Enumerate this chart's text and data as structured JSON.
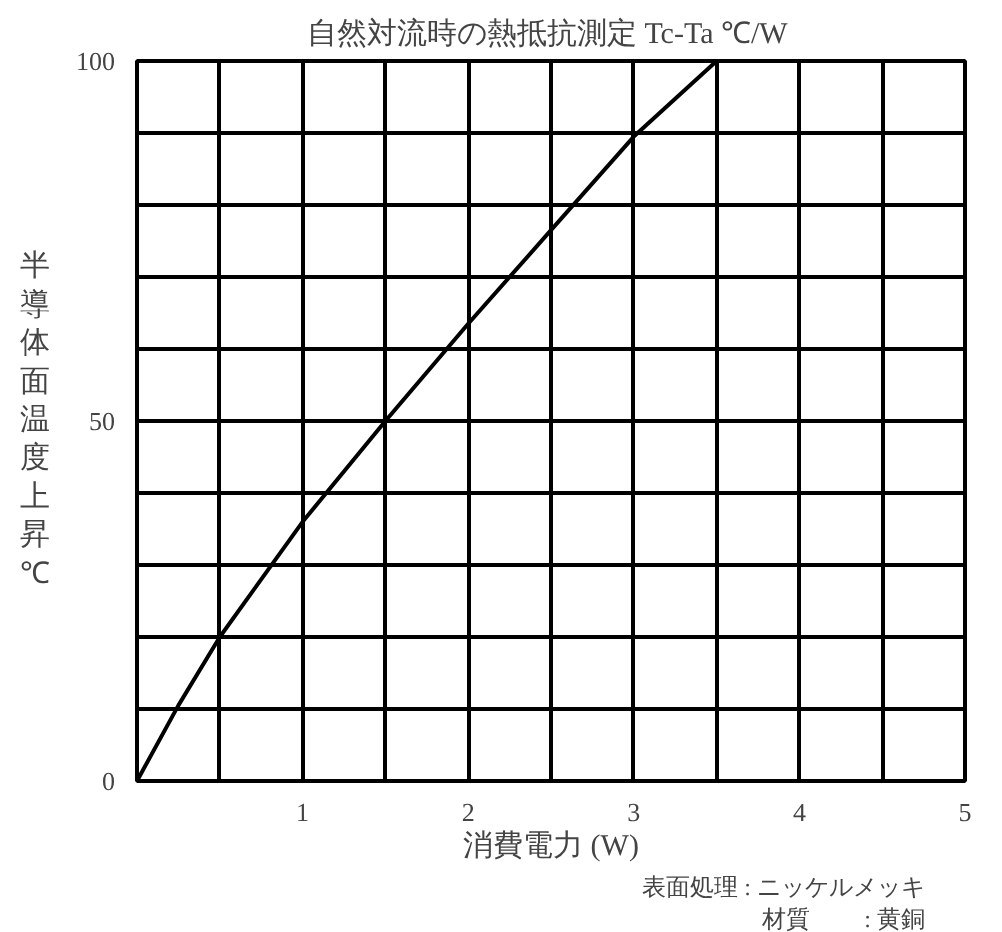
{
  "chart_data": {
    "type": "line",
    "title": "自然対流時の熱抵抗測定  Tc-Ta ℃/W",
    "xlabel": "消費電力 (W)",
    "ylabel": "半導体面温度上昇℃",
    "annotations": [
      "表面処理 : ニッケルメッキ",
      "材質　　 : 黄銅"
    ],
    "x": [
      0,
      0.25,
      0.5,
      1,
      1.5,
      2,
      2.5,
      3,
      3.5
    ],
    "series": [
      {
        "color": "#000000",
        "values": [
          0,
          10.5,
          20,
          36,
          50,
          63.5,
          76.5,
          89.5,
          100
        ]
      }
    ],
    "xlim": [
      0,
      5
    ],
    "ylim": [
      0,
      100
    ],
    "xticks": [
      {
        "value": 0,
        "label": null
      },
      {
        "value": 0.5,
        "label": null
      },
      1,
      {
        "value": 1.5,
        "label": null
      },
      2,
      {
        "value": 2.5,
        "label": null
      },
      3,
      {
        "value": 3.5,
        "label": null
      },
      4,
      {
        "value": 4.5,
        "label": null
      },
      5
    ],
    "yticks": [
      0,
      {
        "value": 10,
        "label": null
      },
      {
        "value": 20,
        "label": null
      },
      {
        "value": 30,
        "label": null
      },
      {
        "value": 40,
        "label": null
      },
      50,
      {
        "value": 60,
        "label": null
      },
      {
        "value": 70,
        "label": null
      },
      {
        "value": 80,
        "label": null
      },
      {
        "value": 90,
        "label": null
      },
      100
    ],
    "grid": true,
    "marker": "none",
    "line_style": "solid"
  }
}
